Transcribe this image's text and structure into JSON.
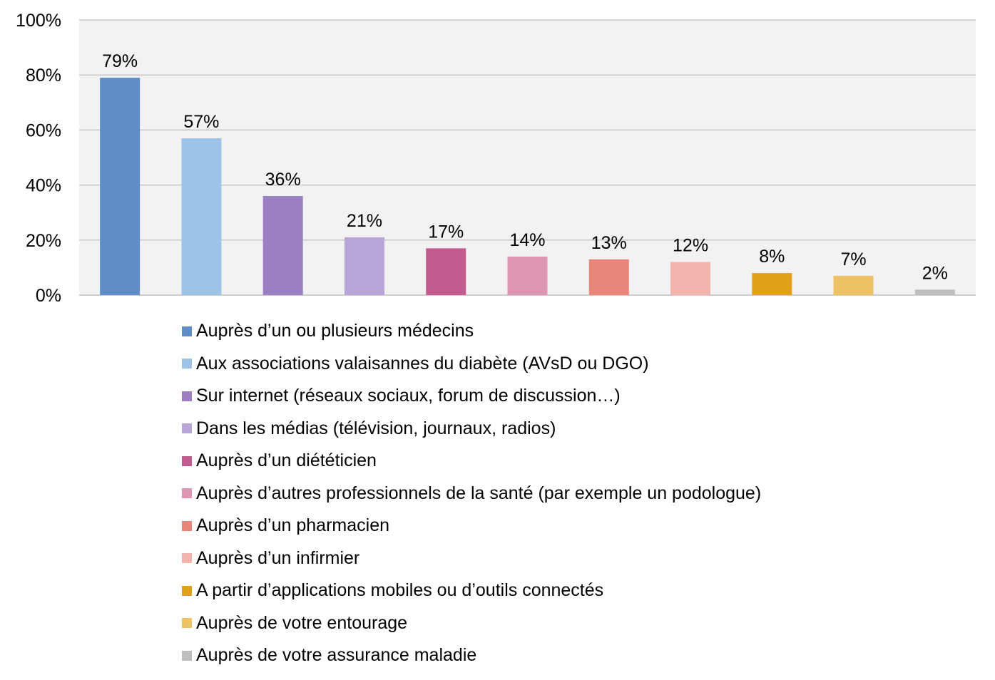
{
  "chart_data": {
    "type": "bar",
    "title": "",
    "xlabel": "",
    "ylabel": "",
    "ylim": [
      0,
      100
    ],
    "y_ticks": [
      0,
      20,
      40,
      60,
      80,
      100
    ],
    "y_tick_labels": [
      "0%",
      "20%",
      "40%",
      "60%",
      "80%",
      "100%"
    ],
    "grid": true,
    "legend_position": "bottom",
    "categories": [
      "Auprès d’un ou plusieurs médecins",
      "Aux associations valaisannes du diabète (AVsD ou DGO)",
      "Sur internet (réseaux sociaux, forum de discussion…)",
      "Dans les médias (télévision, journaux, radios)",
      "Auprès d’un diététicien",
      "Auprès d’autres professionnels de la santé (par exemple un podologue)",
      "Auprès d’un pharmacien",
      "Auprès d’un infirmier",
      "A partir d’applications mobiles ou d’outils connectés",
      "Auprès de votre entourage",
      "Auprès de votre assurance maladie"
    ],
    "values": [
      79,
      57,
      36,
      21,
      17,
      14,
      13,
      12,
      8,
      7,
      2
    ],
    "data_labels": [
      "79%",
      "57%",
      "36%",
      "21%",
      "17%",
      "14%",
      "13%",
      "12%",
      "8%",
      "7%",
      "2%"
    ],
    "colors": [
      "#5f8dc7",
      "#9dc3e6",
      "#9b7ec4",
      "#b9a6d8",
      "#c45b8e",
      "#de95b4",
      "#e8867a",
      "#f2b4ad",
      "#e0a11b",
      "#f0c266",
      "#bfbfbf"
    ]
  }
}
